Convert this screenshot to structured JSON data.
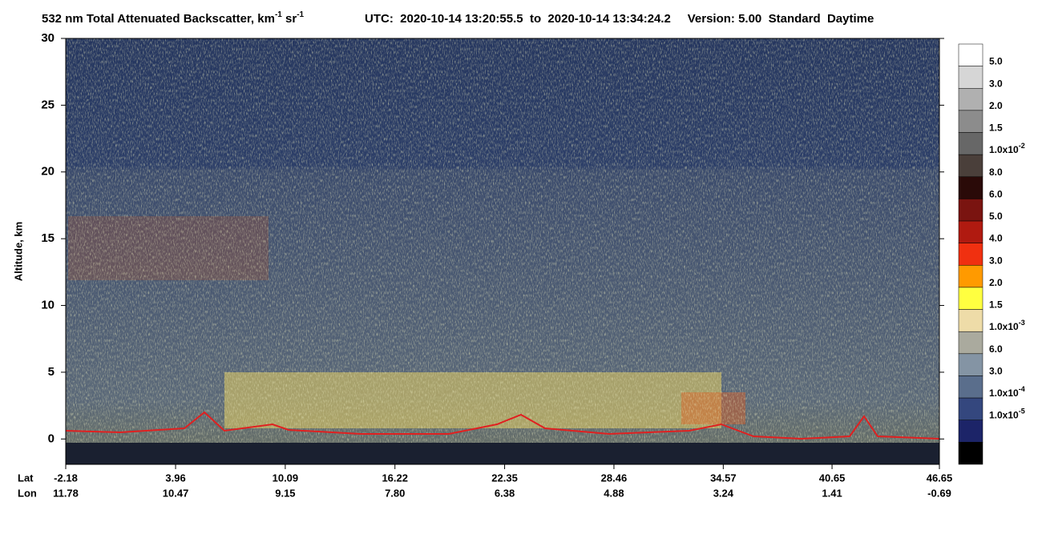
{
  "chart_data": {
    "type": "curtain",
    "title": [
      "532 nm Total Attenuated Backscatter, km",
      "-1",
      " sr",
      "-1"
    ],
    "title_info": "UTC:  2020-10-14 13:20:55.5  to  2020-10-14 13:34:24.2     Version: 5.00  Standard  Daytime",
    "y_label": "Altitude, km",
    "ylim": [
      -1.9,
      30
    ],
    "yticks": [
      0,
      5,
      10,
      15,
      20,
      25,
      30
    ],
    "x_row_labels": [
      "Lat",
      "Lon"
    ],
    "xlim": [
      -2.18,
      46.65
    ],
    "xticks": [
      -2.18,
      3.96,
      10.09,
      16.22,
      22.35,
      28.46,
      34.57,
      40.65,
      46.65
    ],
    "lon_labels": [
      "11.78",
      "10.47",
      "9.15",
      "7.80",
      "6.38",
      "4.88",
      "3.24",
      "1.41",
      "-0.69"
    ],
    "colorbar": {
      "colors": [
        "#ffffff",
        "#d6d6d6",
        "#b0b0b0",
        "#8c8c8c",
        "#676767",
        "#4a3f3a",
        "#2a0a08",
        "#7a1410",
        "#b01a10",
        "#f03010",
        "#ff9a00",
        "#ffff40",
        "#eedca8",
        "#aaaa9e",
        "#8494a4",
        "#5a6e8c",
        "#34477e",
        "#1c2468",
        "#000000"
      ],
      "labels": [
        {
          "text": "5.0"
        },
        {
          "text": "3.0"
        },
        {
          "text": "2.0"
        },
        {
          "text": "1.5"
        },
        {
          "text": "1.0x10",
          "exp": "-2"
        },
        {
          "text": "8.0"
        },
        {
          "text": "6.0"
        },
        {
          "text": "5.0"
        },
        {
          "text": "4.0"
        },
        {
          "text": "3.0"
        },
        {
          "text": "2.0"
        },
        {
          "text": "1.5"
        },
        {
          "text": "1.0x10",
          "exp": "-3"
        },
        {
          "text": "6.0"
        },
        {
          "text": "3.0"
        },
        {
          "text": "1.0x10",
          "exp": "-4"
        },
        {
          "text": "1.0x10",
          "exp": "-5"
        }
      ]
    }
  }
}
